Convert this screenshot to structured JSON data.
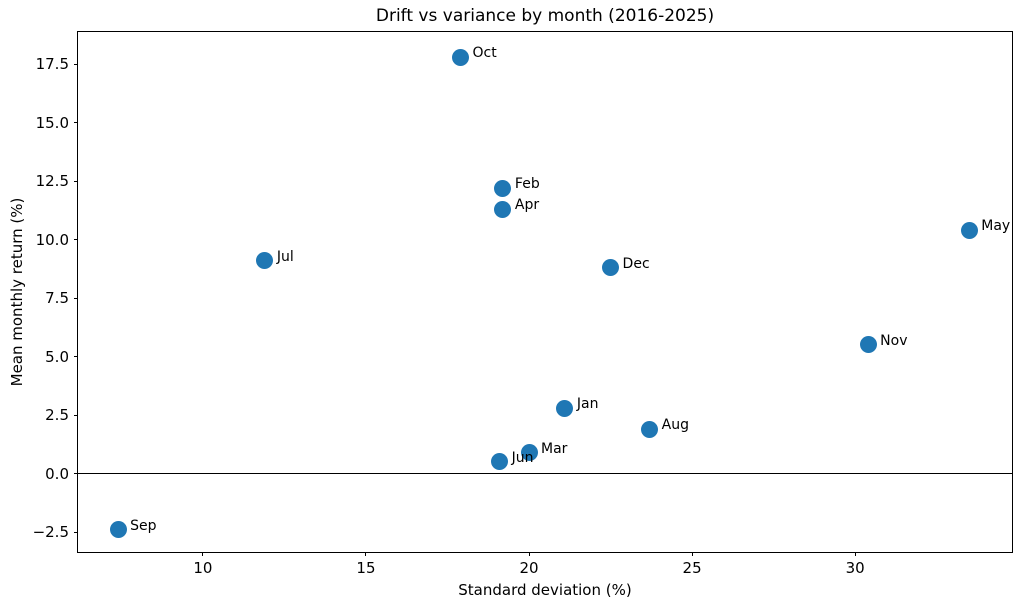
{
  "chart_data": {
    "type": "scatter",
    "title": "Drift vs variance by month (2016-2025)",
    "xlabel": "Standard deviation (%)",
    "ylabel": "Mean monthly return (%)",
    "points": [
      {
        "label": "Jan",
        "x": 21.1,
        "y": 2.8
      },
      {
        "label": "Feb",
        "x": 19.2,
        "y": 12.2
      },
      {
        "label": "Mar",
        "x": 20.0,
        "y": 0.9
      },
      {
        "label": "Apr",
        "x": 19.2,
        "y": 11.3
      },
      {
        "label": "May",
        "x": 33.5,
        "y": 10.4
      },
      {
        "label": "Jun",
        "x": 19.1,
        "y": 0.5
      },
      {
        "label": "Jul",
        "x": 11.9,
        "y": 9.1
      },
      {
        "label": "Aug",
        "x": 23.7,
        "y": 1.9
      },
      {
        "label": "Sep",
        "x": 7.4,
        "y": -2.4
      },
      {
        "label": "Oct",
        "x": 17.9,
        "y": 17.8
      },
      {
        "label": "Nov",
        "x": 30.4,
        "y": 5.5
      },
      {
        "label": "Dec",
        "x": 22.5,
        "y": 8.8
      }
    ],
    "xticks": {
      "values": [
        10,
        15,
        20,
        25,
        30
      ],
      "labels": [
        "10",
        "15",
        "20",
        "25",
        "30"
      ]
    },
    "yticks": {
      "values": [
        -2.5,
        0.0,
        2.5,
        5.0,
        7.5,
        10.0,
        12.5,
        15.0,
        17.5
      ],
      "labels": [
        "−2.5",
        "0.0",
        "2.5",
        "5.0",
        "7.5",
        "10.0",
        "12.5",
        "15.0",
        "17.5"
      ]
    },
    "xlim": [
      6.17,
      34.81
    ],
    "ylim": [
      -3.35,
      18.88
    ],
    "marker_color": "#1f77b4",
    "axis_color": "#000000",
    "zero_line_y": 0,
    "grid": false,
    "legend": null
  }
}
